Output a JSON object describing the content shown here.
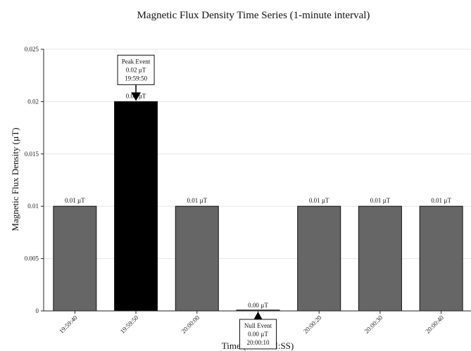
{
  "chart_data": {
    "type": "bar",
    "title": "Magnetic Flux Density Time Series (1-minute interval)",
    "xlabel": "Time (HH:MM:SS)",
    "ylabel": "Magnetic Flux Density (µT)",
    "ylim": [
      0,
      0.025
    ],
    "yticks": [
      "0",
      "0.005",
      "0.01",
      "0.015",
      "0.02",
      "0.025"
    ],
    "grid": true,
    "categories": [
      "19:59:40",
      "19:59:50",
      "20:00:00",
      "20:00:10",
      "20:00:20",
      "20:00:30",
      "20:00:40"
    ],
    "values": [
      0.01,
      0.02,
      0.01,
      0.0,
      0.01,
      0.01,
      0.01
    ],
    "data_labels": [
      "0.01 µT",
      "0.02 µT",
      "0.01 µT",
      "0.00 µT",
      "0.01 µT",
      "0.01 µT",
      "0.01 µT"
    ],
    "colors": {
      "bar": "#666666",
      "peak_bar": "#000000",
      "edge": "#111111"
    },
    "annotations": [
      {
        "category": "19:59:50",
        "lines": [
          "Peak Event",
          "0.02 µT",
          "19:59:50"
        ],
        "marker": "arrow-down"
      },
      {
        "category": "20:00:10",
        "lines": [
          "Null Event",
          "0.00 µT",
          "20:00:10"
        ],
        "marker": "arrow-up"
      }
    ]
  }
}
